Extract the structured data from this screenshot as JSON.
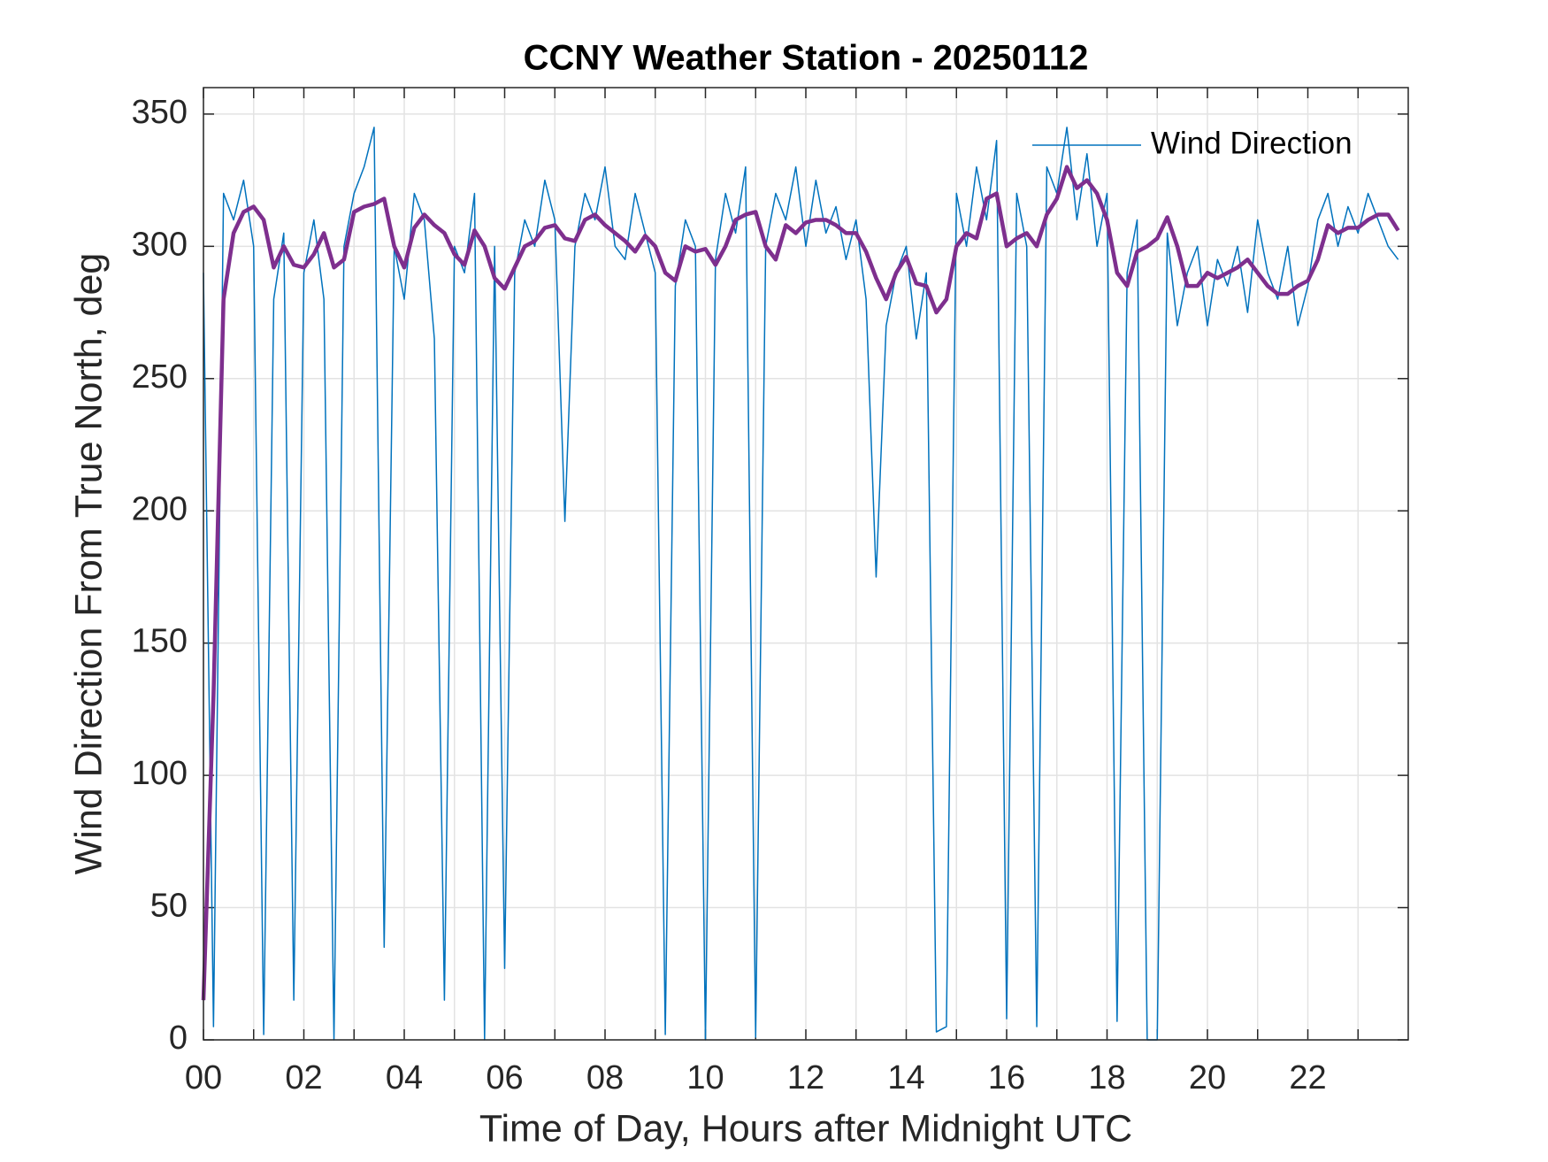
{
  "chart_data": {
    "type": "line",
    "title": "CCNY Weather Station - 20250112",
    "x_label": "Time of Day, Hours after Midnight UTC",
    "y_label": "Wind Direction From True North, deg",
    "x": [
      0,
      0.2,
      0.4,
      0.6,
      0.8,
      1.0,
      1.2,
      1.4,
      1.6,
      1.8,
      2.0,
      2.2,
      2.4,
      2.6,
      2.8,
      3.0,
      3.2,
      3.4,
      3.6,
      3.8,
      4.0,
      4.2,
      4.4,
      4.6,
      4.8,
      5.0,
      5.2,
      5.4,
      5.6,
      5.8,
      6.0,
      6.2,
      6.4,
      6.6,
      6.8,
      7.0,
      7.2,
      7.4,
      7.6,
      7.8,
      8.0,
      8.2,
      8.4,
      8.6,
      8.8,
      9.0,
      9.2,
      9.4,
      9.6,
      9.8,
      10.0,
      10.2,
      10.4,
      10.6,
      10.8,
      11.0,
      11.2,
      11.4,
      11.6,
      11.8,
      12.0,
      12.2,
      12.4,
      12.6,
      12.8,
      13.0,
      13.2,
      13.4,
      13.6,
      13.8,
      14.0,
      14.2,
      14.4,
      14.6,
      14.8,
      15.0,
      15.2,
      15.4,
      15.6,
      15.8,
      16.0,
      16.2,
      16.4,
      16.6,
      16.8,
      17.0,
      17.2,
      17.4,
      17.6,
      17.8,
      18.0,
      18.2,
      18.4,
      18.6,
      18.8,
      19.0,
      19.2,
      19.4,
      19.6,
      19.8,
      20.0,
      20.2,
      20.4,
      20.6,
      20.8,
      21.0,
      21.2,
      21.4,
      21.6,
      21.8,
      22.0,
      22.2,
      22.4,
      22.6,
      22.8,
      23.0,
      23.2,
      23.4,
      23.6,
      23.8
    ],
    "series": [
      {
        "name": "Wind Direction",
        "color": "#0072bd",
        "width": 1.5,
        "values": [
          290,
          5,
          320,
          310,
          325,
          300,
          2,
          280,
          305,
          15,
          290,
          310,
          280,
          0,
          300,
          320,
          330,
          345,
          35,
          300,
          280,
          320,
          310,
          265,
          15,
          300,
          290,
          320,
          0,
          300,
          27,
          290,
          310,
          300,
          325,
          310,
          196,
          300,
          320,
          310,
          330,
          300,
          295,
          320,
          305,
          290,
          2,
          285,
          310,
          300,
          0,
          295,
          320,
          305,
          330,
          1,
          300,
          320,
          310,
          330,
          300,
          325,
          305,
          315,
          295,
          310,
          280,
          175,
          270,
          290,
          300,
          265,
          290,
          3,
          5,
          320,
          300,
          330,
          310,
          340,
          8,
          320,
          300,
          5,
          330,
          320,
          345,
          310,
          335,
          300,
          320,
          7,
          290,
          310,
          0,
          0,
          305,
          270,
          290,
          300,
          270,
          295,
          285,
          300,
          275,
          310,
          290,
          280,
          300,
          270,
          285,
          310,
          320,
          300,
          315,
          305,
          320,
          310,
          300,
          295
        ]
      },
      {
        "color": "#7e2f8e",
        "width": 4.5,
        "values": [
          15,
          130,
          280,
          305,
          313,
          315,
          310,
          292,
          300,
          293,
          292,
          297,
          305,
          292,
          295,
          313,
          315,
          316,
          318,
          300,
          292,
          307,
          312,
          308,
          305,
          297,
          293,
          306,
          300,
          288,
          284,
          292,
          300,
          302,
          307,
          308,
          303,
          302,
          310,
          312,
          308,
          305,
          302,
          298,
          304,
          300,
          290,
          287,
          300,
          298,
          299,
          293,
          300,
          310,
          312,
          313,
          300,
          295,
          308,
          305,
          309,
          310,
          310,
          308,
          305,
          305,
          298,
          288,
          280,
          290,
          296,
          286,
          285,
          275,
          280,
          300,
          305,
          303,
          318,
          320,
          300,
          303,
          305,
          300,
          312,
          318,
          330,
          322,
          325,
          320,
          310,
          290,
          285,
          298,
          300,
          303,
          311,
          300,
          285,
          285,
          290,
          288,
          290,
          292,
          295,
          290,
          285,
          282,
          282,
          285,
          287,
          295,
          308,
          305,
          307,
          307,
          310,
          312,
          312,
          306
        ]
      }
    ],
    "xlim": [
      0,
      24
    ],
    "ylim": [
      0,
      360
    ],
    "xticks": [
      {
        "value": 0,
        "label": "00"
      },
      {
        "value": 2,
        "label": "02"
      },
      {
        "value": 4,
        "label": "04"
      },
      {
        "value": 6,
        "label": "06"
      },
      {
        "value": 8,
        "label": "08"
      },
      {
        "value": 10,
        "label": "10"
      },
      {
        "value": 12,
        "label": "12"
      },
      {
        "value": 14,
        "label": "14"
      },
      {
        "value": 16,
        "label": "16"
      },
      {
        "value": 18,
        "label": "18"
      },
      {
        "value": 20,
        "label": "20"
      },
      {
        "value": 22,
        "label": "22"
      }
    ],
    "xminorticks": [
      1,
      3,
      5,
      7,
      9,
      11,
      13,
      15,
      17,
      19,
      21,
      23
    ],
    "yticks": [
      0,
      50,
      100,
      150,
      200,
      250,
      300,
      350
    ],
    "grid": true,
    "legend": "northeast"
  }
}
